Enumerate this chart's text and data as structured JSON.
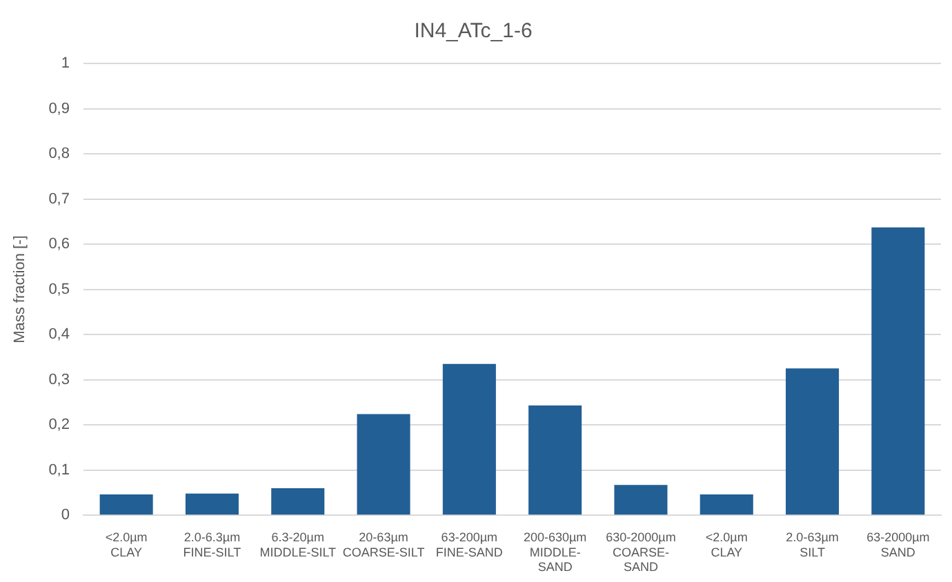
{
  "chart_data": {
    "type": "bar",
    "title": "IN4_ATc_1-6",
    "ylabel": "Mass fraction [-]",
    "categories": [
      "<2.0µm\nCLAY",
      "2.0-6.3µm\nFINE-SILT",
      "6.3-20µm\nMIDDLE-SILT",
      "20-63µm\nCOARSE-SILT",
      "63-200µm\nFINE-SAND",
      "200-630µm\nMIDDLE-\nSAND",
      "630-2000µm\nCOARSE-\nSAND",
      "<2.0µm\nCLAY",
      "2.0-63µm\nSILT",
      "63-2000µm\nSAND"
    ],
    "values": [
      0.046,
      0.048,
      0.06,
      0.224,
      0.335,
      0.243,
      0.067,
      0.046,
      0.325,
      0.637
    ],
    "color": "#225f94",
    "ylim": [
      0,
      1
    ],
    "yticks": [
      0,
      {
        "value": 0.1,
        "label": "0,1"
      },
      {
        "value": 0.2,
        "label": "0,2"
      },
      {
        "value": 0.3,
        "label": "0,3"
      },
      {
        "value": 0.4,
        "label": "0,4"
      },
      {
        "value": 0.5,
        "label": "0,5"
      },
      {
        "value": 0.6,
        "label": "0,6"
      },
      {
        "value": 0.7,
        "label": "0,7"
      },
      {
        "value": 0.8,
        "label": "0,8"
      },
      {
        "value": 0.9,
        "label": "0,9"
      },
      1
    ],
    "grid": "y",
    "legend": false
  }
}
